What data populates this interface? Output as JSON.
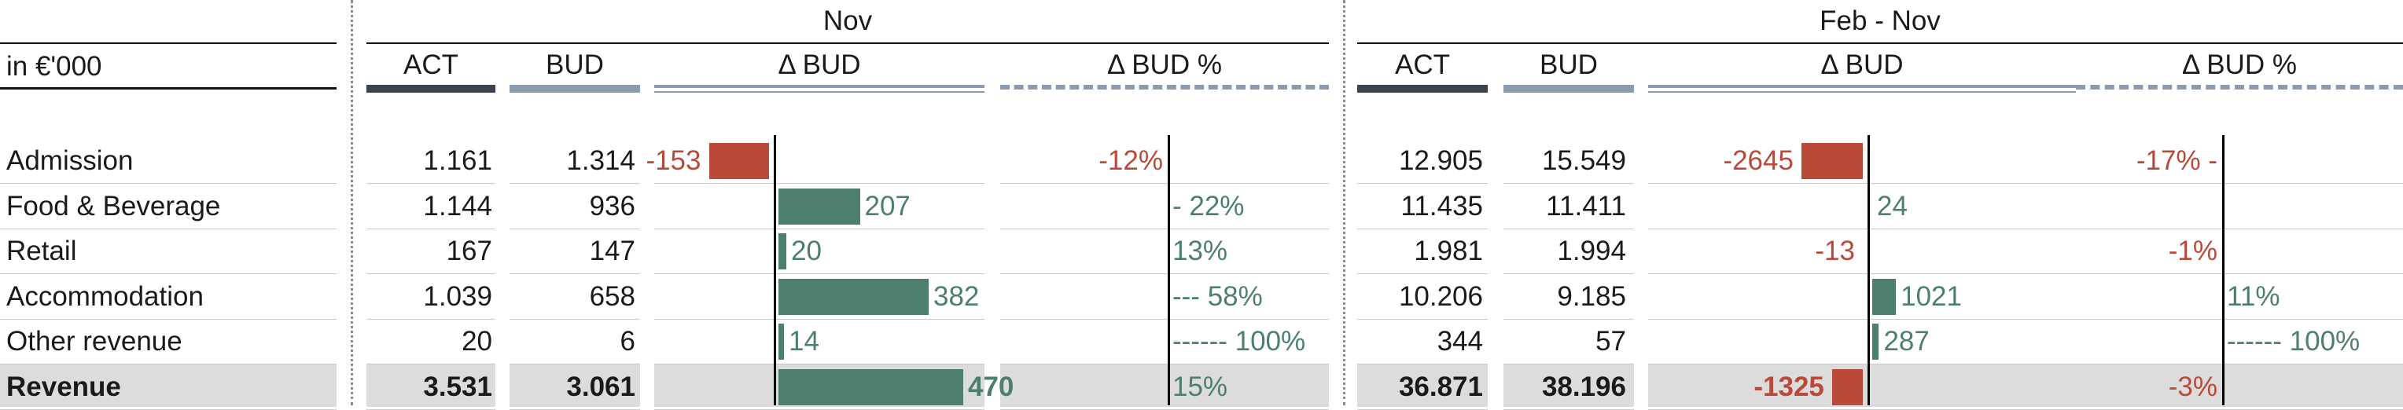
{
  "chart_data": {
    "type": "table",
    "unit_label": "in €'000",
    "periods": [
      {
        "label": "Nov",
        "columns": [
          "ACT",
          "BUD",
          "Δ BUD",
          "Δ BUD %"
        ],
        "rows": [
          {
            "act": "1.161",
            "bud": "1.314",
            "delta": -153,
            "delta_label": "-153",
            "pct": -12,
            "pct_label": "-12%"
          },
          {
            "act": "1.144",
            "bud": "936",
            "delta": 207,
            "delta_label": "207",
            "pct": 22,
            "pct_label": "- 22%"
          },
          {
            "act": "167",
            "bud": "147",
            "delta": 20,
            "delta_label": "20",
            "pct": 13,
            "pct_label": "13%"
          },
          {
            "act": "1.039",
            "bud": "658",
            "delta": 382,
            "delta_label": "382",
            "pct": 58,
            "pct_label": "--- 58%"
          },
          {
            "act": "20",
            "bud": "6",
            "delta": 14,
            "delta_label": "14",
            "pct": 100,
            "pct_label": "------ 100%"
          },
          {
            "act": "3.531",
            "bud": "3.061",
            "delta": 470,
            "delta_label": "470",
            "pct": 15,
            "pct_label": "15%"
          }
        ]
      },
      {
        "label": "Feb - Nov",
        "columns": [
          "ACT",
          "BUD",
          "Δ BUD",
          "Δ BUD %"
        ],
        "rows": [
          {
            "act": "12.905",
            "bud": "15.549",
            "delta": -2645,
            "delta_label": "-2645",
            "pct": -17,
            "pct_label": "-17% -"
          },
          {
            "act": "11.435",
            "bud": "11.411",
            "delta": 24,
            "delta_label": "24",
            "pct": 0,
            "pct_label": ""
          },
          {
            "act": "1.981",
            "bud": "1.994",
            "delta": -13,
            "delta_label": "-13",
            "pct": -1,
            "pct_label": "-1%"
          },
          {
            "act": "10.206",
            "bud": "9.185",
            "delta": 1021,
            "delta_label": "1021",
            "pct": 11,
            "pct_label": "11%"
          },
          {
            "act": "344",
            "bud": "57",
            "delta": 287,
            "delta_label": "287",
            "pct": 100,
            "pct_label": "------ 100%"
          },
          {
            "act": "36.871",
            "bud": "38.196",
            "delta": -1325,
            "delta_label": "-1325",
            "pct": -3,
            "pct_label": "-3%"
          }
        ]
      }
    ],
    "row_labels": [
      "Admission",
      "Food & Beverage",
      "Retail",
      "Accommodation",
      "Other revenue",
      "Revenue"
    ],
    "total_row_index": 5,
    "colors": {
      "negative": "#b94a3a",
      "positive": "#4d7f6f",
      "act_underline": "#3a4451",
      "bud_underline": "#8a9bb0",
      "total_shade": "#dcdcdc"
    }
  }
}
